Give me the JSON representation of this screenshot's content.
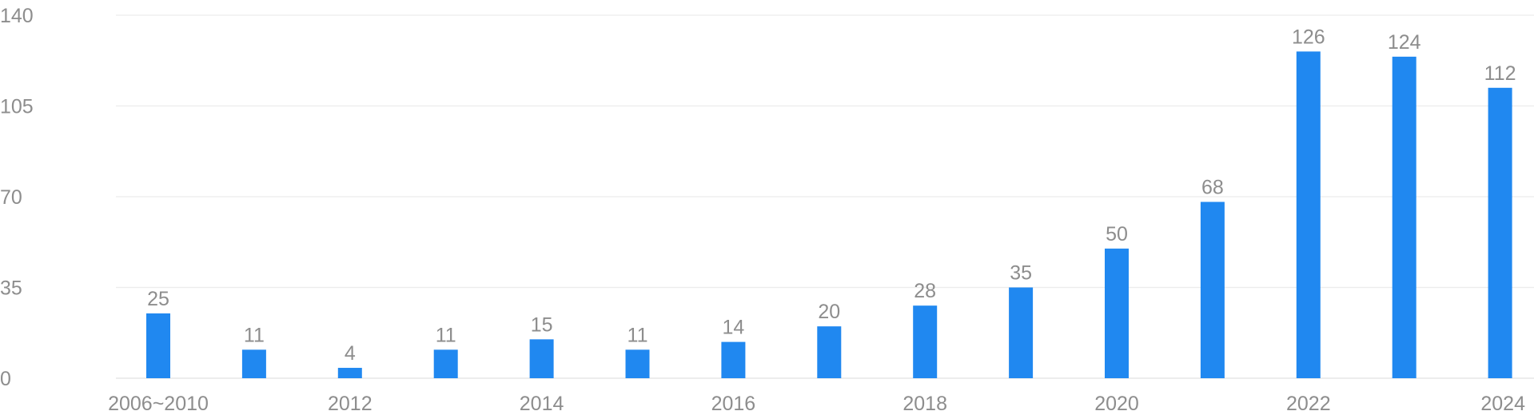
{
  "chart_data": {
    "type": "bar",
    "categories": [
      "2006~2010",
      "2011",
      "2012",
      "2013",
      "2014",
      "2015",
      "2016",
      "2017",
      "2018",
      "2019",
      "2020",
      "2021",
      "2022",
      "2023",
      "2024"
    ],
    "values": [
      25,
      11,
      4,
      11,
      15,
      11,
      14,
      20,
      28,
      35,
      50,
      68,
      126,
      124,
      112
    ],
    "x_tick_labels": [
      "2006~2010",
      "2012",
      "2014",
      "2016",
      "2018",
      "2020",
      "2022",
      "2024"
    ],
    "y_ticks": [
      0,
      35,
      70,
      105,
      140
    ],
    "ylim": [
      0,
      140
    ],
    "bar_color": "#2088f0",
    "title": "",
    "xlabel": "",
    "ylabel": "",
    "grid": true,
    "data_labels": true
  }
}
